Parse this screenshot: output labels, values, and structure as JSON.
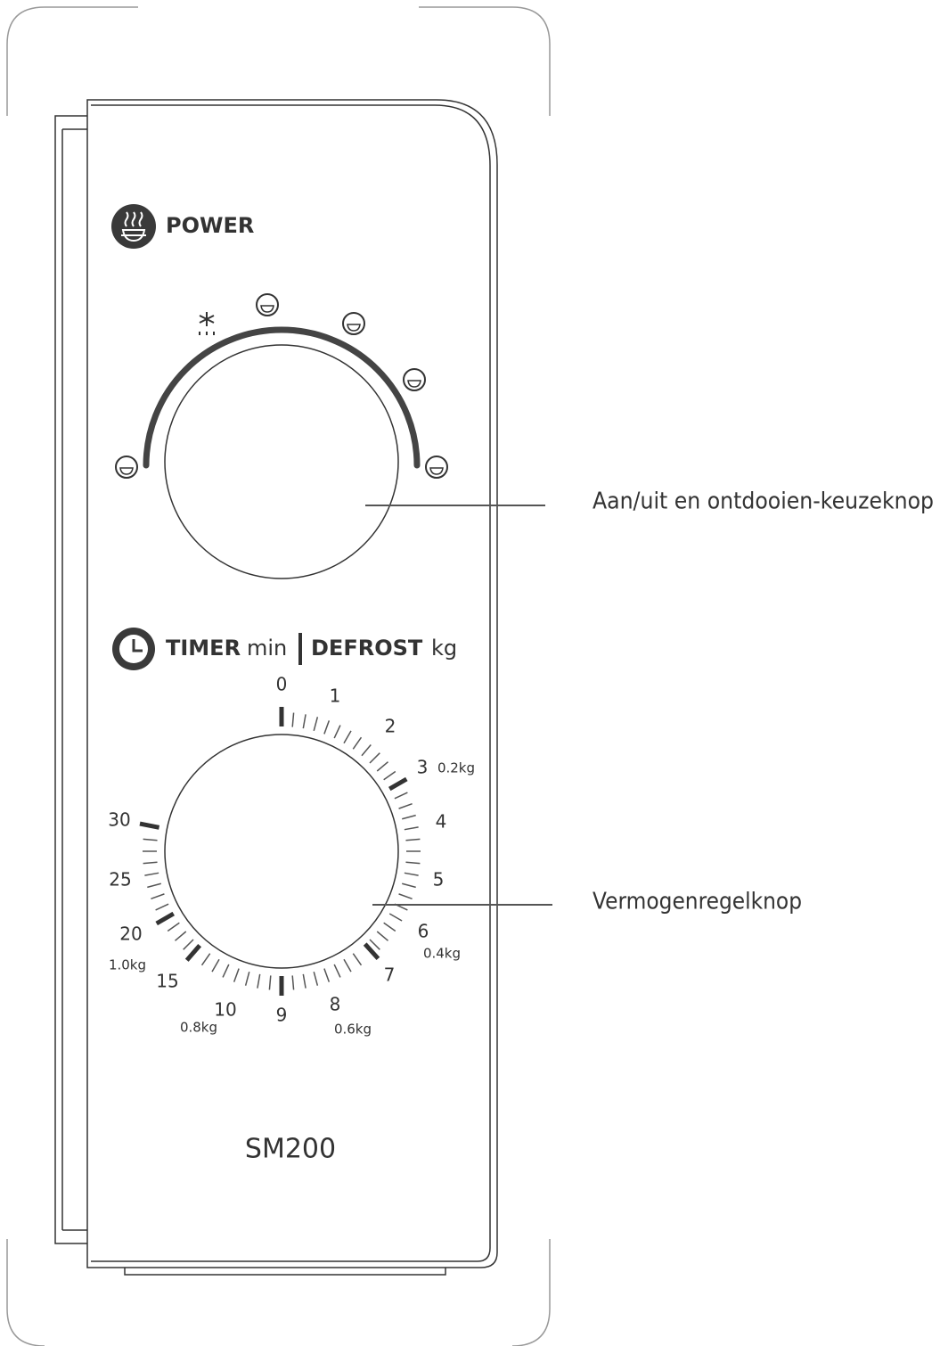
{
  "power": {
    "label": "POWER"
  },
  "timer": {
    "label": "TIMER",
    "unit": "min",
    "defrost": "DEFROST",
    "defrost_unit": "kg",
    "marks": [
      "0",
      "1",
      "2",
      "3",
      "4",
      "5",
      "6",
      "7",
      "8",
      "9",
      "10",
      "15",
      "20",
      "25",
      "30"
    ],
    "weights": [
      "0.2kg",
      "0.4kg",
      "0.6kg",
      "0.8kg",
      "1.0kg"
    ]
  },
  "model": "SM200",
  "callouts": [
    "Aan/uit en ontdooien-keuzeknop",
    "Vermogenregelknop"
  ]
}
